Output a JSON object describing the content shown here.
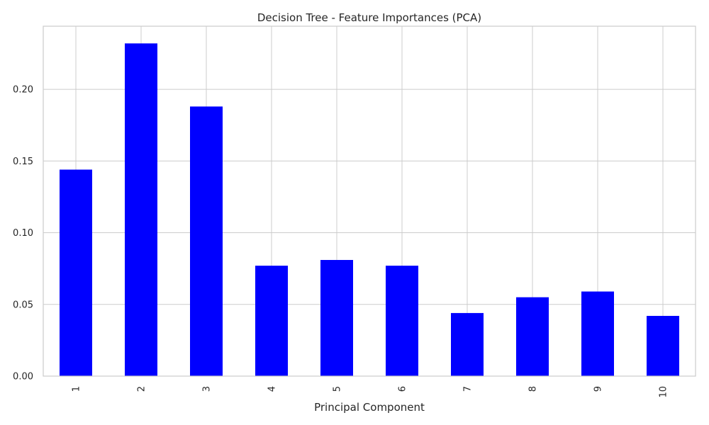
{
  "chart_data": {
    "type": "bar",
    "title": "Decision Tree - Feature Importances (PCA)",
    "xlabel": "Principal Component",
    "ylabel": "",
    "categories": [
      "1",
      "2",
      "3",
      "4",
      "5",
      "6",
      "7",
      "8",
      "9",
      "10"
    ],
    "values": [
      0.144,
      0.232,
      0.188,
      0.077,
      0.081,
      0.077,
      0.044,
      0.055,
      0.059,
      0.042
    ],
    "ylim": [
      0,
      0.244
    ],
    "yticks": [
      0.0,
      0.05,
      0.1,
      0.15,
      0.2
    ],
    "ytick_labels": [
      "0.00",
      "0.05",
      "0.10",
      "0.15",
      "0.20"
    ],
    "grid": true,
    "bar_color": "#0000ff",
    "grid_color": "#cccccc"
  }
}
